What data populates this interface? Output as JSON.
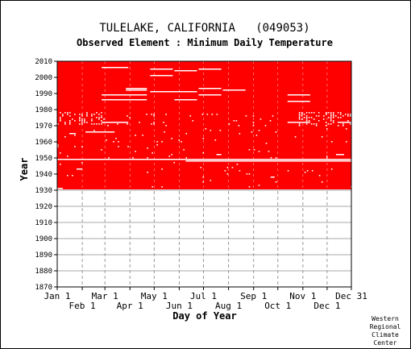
{
  "chart_data": {
    "type": "heatmap",
    "title": "TULELAKE, CALIFORNIA   (049053)",
    "subtitle": "Observed Element : Minimum Daily Temperature",
    "xlabel": "Day of Year",
    "ylabel": "Year",
    "xlim": [
      1,
      365
    ],
    "ylim": [
      1870,
      2010
    ],
    "grid": true,
    "x_ticks_top_row": [
      "Jan 1",
      "Mar 1",
      "May 1",
      "Jul 1",
      "Sep 1",
      "Nov 1",
      "Dec 31"
    ],
    "x_ticks_bottom_row": [
      "Feb 1",
      "Apr 1",
      "Jun 1",
      "Aug 1",
      "Oct 1",
      "Dec 1"
    ],
    "x_tick_days_top_row": [
      1,
      60,
      121,
      182,
      244,
      305,
      365
    ],
    "x_tick_days_bottom_row": [
      32,
      91,
      152,
      213,
      274,
      335
    ],
    "y_ticks": [
      2010,
      2000,
      1990,
      1980,
      1970,
      1960,
      1950,
      1940,
      1930,
      1920,
      1910,
      1900,
      1890,
      1880,
      1870
    ],
    "data_color": "#ff0000",
    "missing_color": "#ffffff",
    "data_years": [
      1931,
      2010
    ],
    "missing_segments": [
      {
        "year": 1949,
        "start_day": 1,
        "end_day": 365
      },
      {
        "year": 1948,
        "start_day": 160,
        "end_day": 365
      },
      {
        "year": 1931,
        "start_day": 1,
        "end_day": 8
      },
      {
        "year": 2006,
        "start_day": 56,
        "end_day": 89
      },
      {
        "year": 2005,
        "start_day": 116,
        "end_day": 144
      },
      {
        "year": 2004,
        "start_day": 146,
        "end_day": 174
      },
      {
        "year": 2005,
        "start_day": 176,
        "end_day": 204
      },
      {
        "year": 2001,
        "start_day": 116,
        "end_day": 144
      },
      {
        "year": 1993,
        "start_day": 86,
        "end_day": 112
      },
      {
        "year": 1992,
        "start_day": 86,
        "end_day": 112
      },
      {
        "year": 1993,
        "start_day": 176,
        "end_day": 204
      },
      {
        "year": 1992,
        "start_day": 206,
        "end_day": 234
      },
      {
        "year": 1991,
        "start_day": 116,
        "end_day": 174
      },
      {
        "year": 1989,
        "start_day": 56,
        "end_day": 112
      },
      {
        "year": 1989,
        "start_day": 176,
        "end_day": 204
      },
      {
        "year": 1989,
        "start_day": 286,
        "end_day": 314
      },
      {
        "year": 1986,
        "start_day": 56,
        "end_day": 112
      },
      {
        "year": 1986,
        "start_day": 146,
        "end_day": 174
      },
      {
        "year": 1985,
        "start_day": 286,
        "end_day": 314
      },
      {
        "year": 1972,
        "start_day": 56,
        "end_day": 89
      },
      {
        "year": 1972,
        "start_day": 286,
        "end_day": 314
      },
      {
        "year": 1972,
        "start_day": 348,
        "end_day": 365
      },
      {
        "year": 1966,
        "start_day": 36,
        "end_day": 72
      },
      {
        "year": 1965,
        "start_day": 16,
        "end_day": 24
      },
      {
        "year": 1943,
        "start_day": 25,
        "end_day": 32
      },
      {
        "year": 1952,
        "start_day": 198,
        "end_day": 204
      },
      {
        "year": 1938,
        "start_day": 265,
        "end_day": 270
      },
      {
        "year": 1952,
        "start_day": 346,
        "end_day": 356
      }
    ],
    "missing_clusters": [
      {
        "years": [
          1971,
          1978
        ],
        "start_day": 1,
        "end_day": 60,
        "density": 0.35
      },
      {
        "years": [
          1970,
          1977
        ],
        "start_day": 60,
        "end_day": 270,
        "density": 0.06
      },
      {
        "years": [
          1970,
          1978
        ],
        "start_day": 300,
        "end_day": 365,
        "density": 0.3
      },
      {
        "years": [
          1950,
          1968
        ],
        "start_day": 1,
        "end_day": 365,
        "density": 0.03
      },
      {
        "years": [
          1932,
          1947
        ],
        "start_day": 1,
        "end_day": 365,
        "density": 0.015
      }
    ]
  },
  "footer": [
    "Western",
    "Regional",
    "Climate",
    "Center"
  ]
}
